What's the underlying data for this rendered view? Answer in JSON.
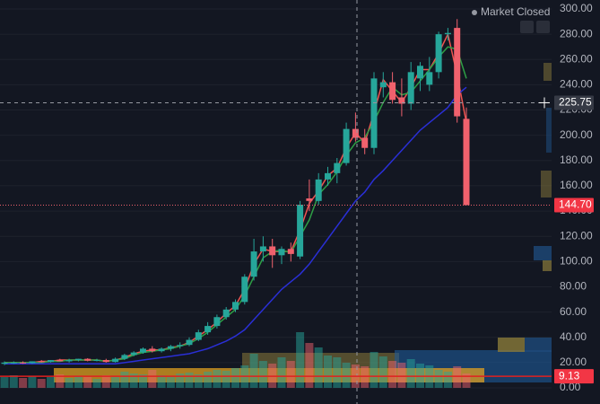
{
  "chart_data": {
    "type": "candlestick",
    "status": "Market Closed",
    "open": [
      19,
      20,
      20,
      19.5,
      21,
      20.5,
      22,
      21,
      22,
      23,
      21.5,
      22,
      20.5,
      23,
      26,
      28,
      31,
      29,
      31,
      33,
      34,
      38,
      44,
      49,
      56,
      62,
      68,
      88,
      108,
      112,
      105,
      110,
      104,
      150,
      148,
      165,
      170,
      178,
      205,
      198,
      190,
      238,
      242,
      230,
      225,
      245,
      240,
      250,
      280,
      285,
      213
    ],
    "high": [
      21,
      21,
      21,
      21,
      22,
      22,
      23,
      23,
      23,
      23.5,
      23,
      23,
      24,
      27,
      29,
      32,
      33,
      32,
      34,
      36,
      40,
      46,
      52,
      58,
      64,
      70,
      90,
      118,
      120,
      118,
      112,
      115,
      148,
      165,
      170,
      175,
      182,
      210,
      218,
      205,
      250,
      250,
      250,
      245,
      258,
      258,
      262,
      282,
      285,
      292,
      222
    ],
    "low": [
      18,
      19,
      19,
      19,
      20,
      20,
      21,
      20,
      21,
      21,
      21,
      20,
      20,
      22,
      25,
      27,
      28,
      28,
      29,
      31,
      33,
      37,
      42,
      47,
      54,
      60,
      66,
      85,
      100,
      95,
      98,
      100,
      102,
      140,
      145,
      160,
      162,
      176,
      195,
      185,
      185,
      230,
      225,
      215,
      220,
      235,
      235,
      245,
      275,
      210,
      145
    ],
    "close": [
      20,
      20,
      19.5,
      21,
      20.5,
      22,
      21,
      22,
      23,
      21.5,
      22,
      20.5,
      23,
      26,
      28,
      31,
      29,
      31,
      33,
      34,
      38,
      44,
      49,
      56,
      62,
      68,
      88,
      108,
      112,
      105,
      110,
      106,
      145,
      148,
      165,
      170,
      178,
      205,
      198,
      190,
      245,
      242,
      228,
      225,
      250,
      255,
      250,
      280,
      281,
      215,
      144.7
    ],
    "volume": [
      12,
      14,
      11,
      13,
      10,
      12,
      15,
      11,
      13,
      12,
      10,
      14,
      12,
      18,
      16,
      15,
      20,
      14,
      13,
      16,
      17,
      15,
      18,
      20,
      19,
      22,
      25,
      38,
      30,
      27,
      34,
      30,
      62,
      50,
      45,
      36,
      34,
      28,
      26,
      24,
      40,
      35,
      30,
      28,
      32,
      27,
      25,
      20,
      18,
      24,
      16
    ],
    "series": [
      {
        "color": "#ef5350",
        "values": [
          20,
          20,
          20,
          20,
          21,
          21,
          22,
          22,
          22,
          22,
          22,
          21,
          22,
          24,
          27,
          29,
          30,
          30,
          32,
          33,
          36,
          41,
          46,
          52,
          59,
          65,
          78,
          98,
          110,
          108,
          108,
          108,
          125,
          146,
          156,
          168,
          174,
          190,
          202,
          194,
          218,
          244,
          235,
          226,
          238,
          252,
          252,
          265,
          280,
          248,
          210
        ]
      },
      {
        "color": "#2e9e45",
        "values": [
          20,
          20,
          20,
          20,
          20,
          21,
          21,
          22,
          22,
          22,
          22,
          21,
          22,
          23,
          26,
          28,
          29,
          30,
          31,
          33,
          35,
          39,
          44,
          50,
          56,
          62,
          73,
          88,
          103,
          108,
          109,
          107,
          120,
          133,
          153,
          161,
          171,
          184,
          194,
          198,
          211,
          226,
          238,
          232,
          234,
          243,
          252,
          262,
          270,
          268,
          245
        ]
      },
      {
        "color": "#2a2fd6",
        "values": [
          19,
          19,
          19,
          19,
          19,
          19,
          19,
          19,
          19,
          19,
          19,
          19,
          19,
          20,
          21,
          22,
          23,
          24,
          25,
          26,
          27,
          29,
          31,
          34,
          37,
          41,
          46,
          54,
          62,
          70,
          78,
          84,
          90,
          98,
          108,
          118,
          128,
          138,
          148,
          155,
          165,
          172,
          180,
          188,
          196,
          204,
          210,
          216,
          222,
          232,
          238
        ]
      }
    ],
    "ylim": [
      0,
      310
    ],
    "yticks": [
      {
        "value": 0,
        "label": "0.00"
      },
      {
        "value": 20,
        "label": "20.00"
      },
      {
        "value": 40,
        "label": "40.00"
      },
      {
        "value": 60,
        "label": "60.00"
      },
      {
        "value": 80,
        "label": "80.00"
      },
      {
        "value": 100,
        "label": "100.00"
      },
      {
        "value": 120,
        "label": "120.00"
      },
      {
        "value": 140,
        "label": "140.00"
      },
      {
        "value": 160,
        "label": "160.00"
      },
      {
        "value": 180,
        "label": "180.00"
      },
      {
        "value": 200,
        "label": "200.00"
      },
      {
        "value": 220,
        "label": "220.00"
      },
      {
        "value": 240,
        "label": "240.00"
      },
      {
        "value": 260,
        "label": "260.00"
      },
      {
        "value": 280,
        "label": "280.00"
      },
      {
        "value": 300,
        "label": "300.00"
      }
    ],
    "crosshair_price": {
      "value": 225.75,
      "label": "225.75"
    },
    "last_price": {
      "value": 144.7,
      "label": "144.70"
    },
    "indicator_value": {
      "value": 9.13,
      "label": "9.13"
    },
    "up_color": "#26a69a",
    "down_color": "#f0616d"
  }
}
